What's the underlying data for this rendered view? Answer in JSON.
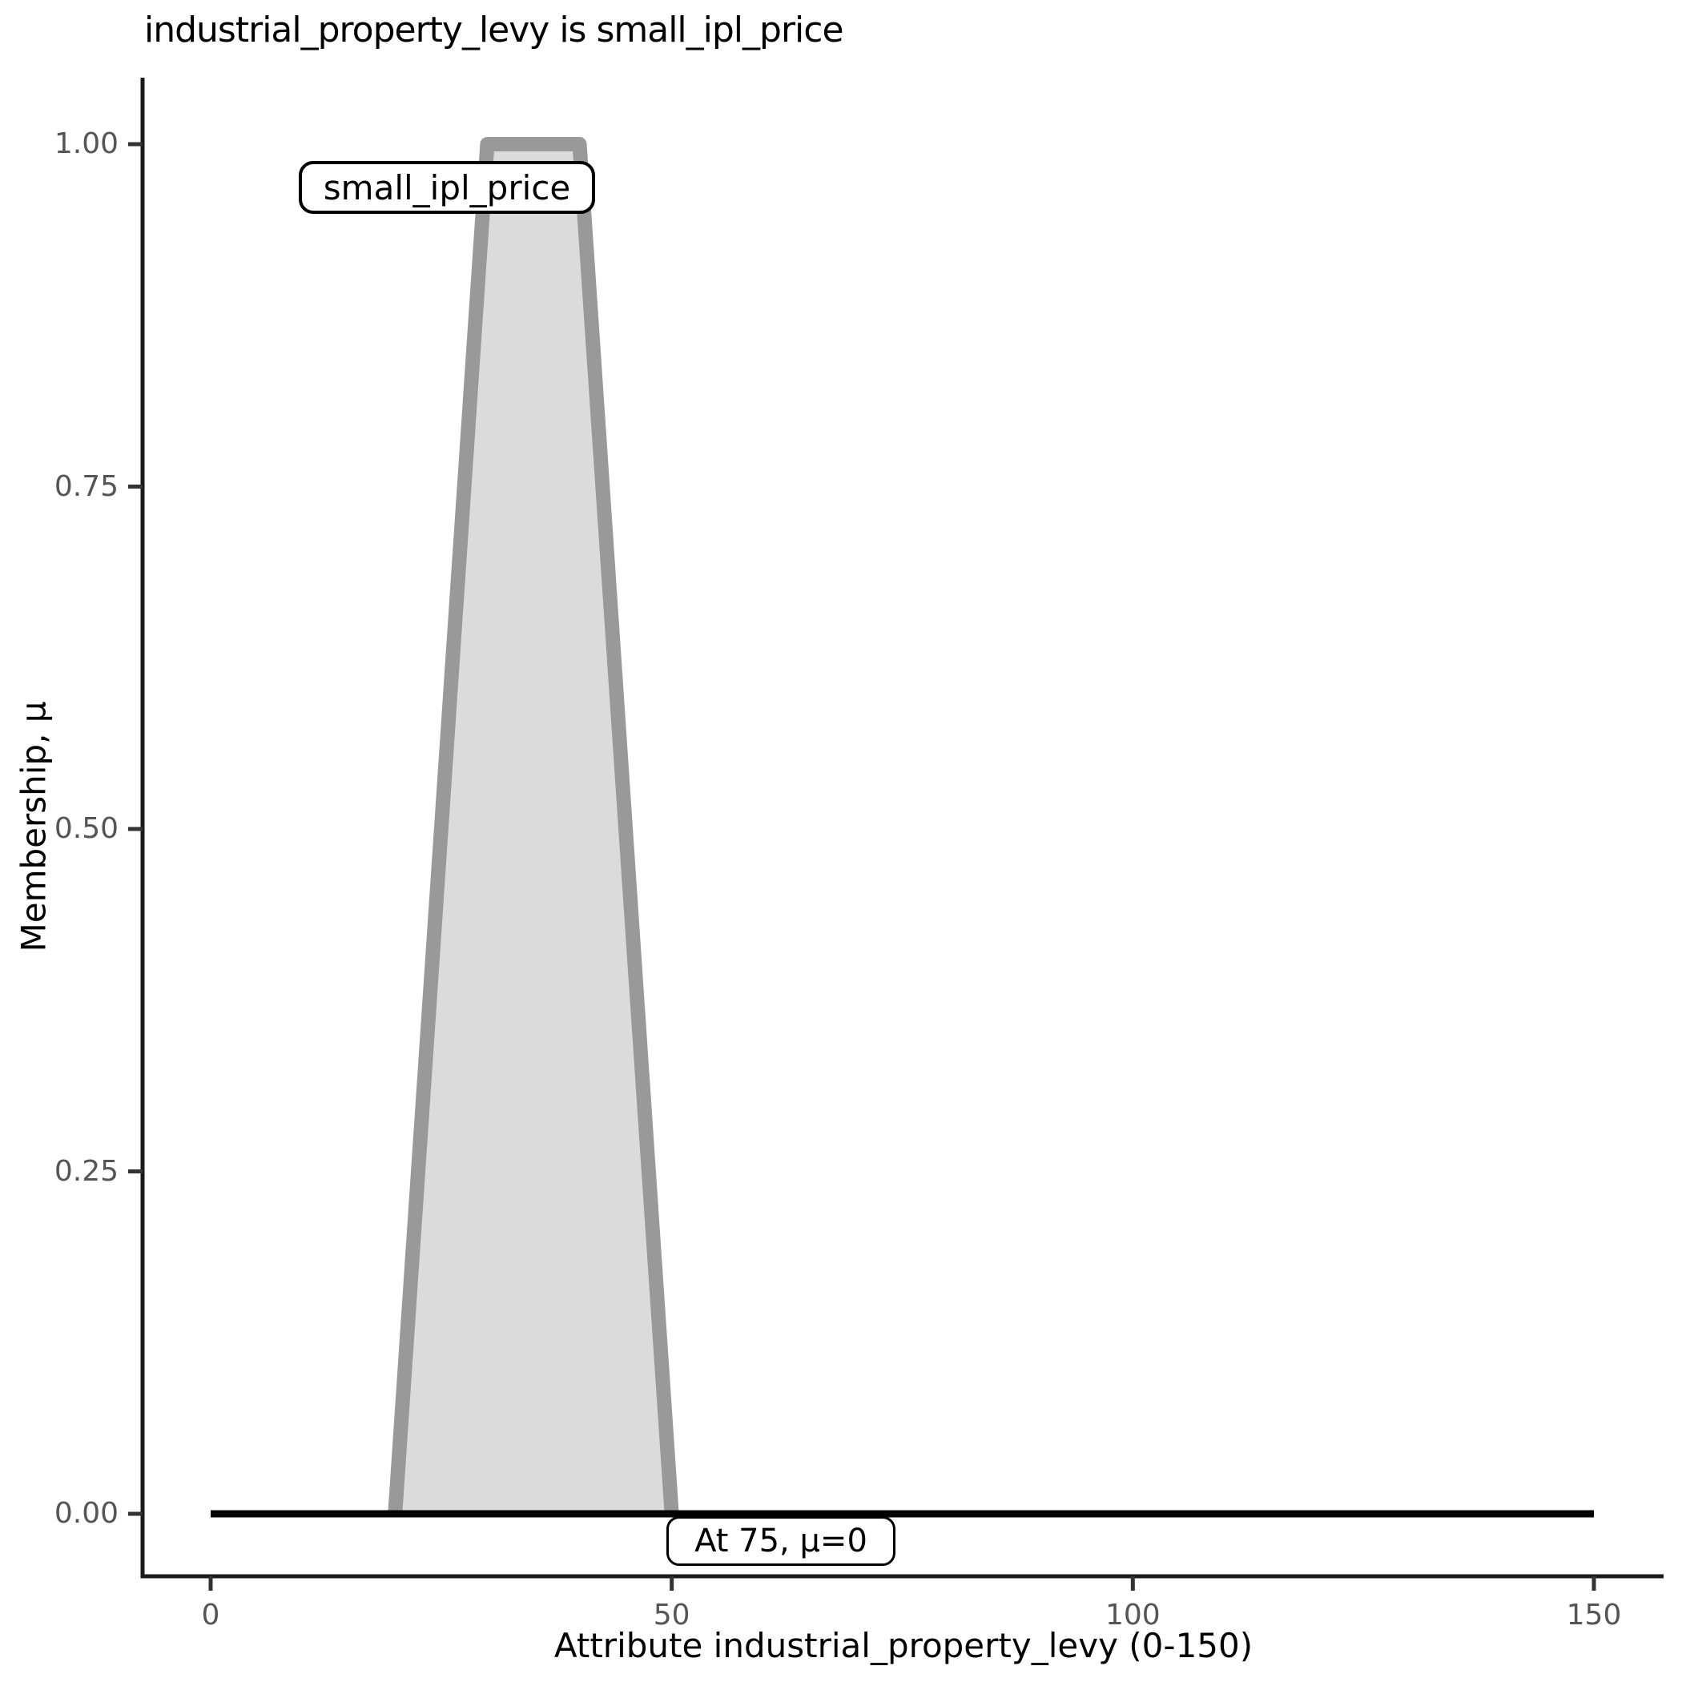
{
  "title": "industrial_property_levy is small_ipl_price",
  "axes": {
    "x_title": "Attribute industrial_property_levy (0-150)",
    "y_title": "Membership, μ",
    "x_tick_labels": [
      "0",
      "50",
      "100",
      "150"
    ],
    "y_tick_labels": [
      "0.00",
      "0.25",
      "0.50",
      "0.75",
      "1.00"
    ]
  },
  "labels": {
    "set_label": "small_ipl_price",
    "activation_label": "At 75, μ=0"
  },
  "colors": {
    "set_fill": "#DBDBDB",
    "set_stroke": "#999999",
    "baseline": "#000000",
    "spine": "#1a1a1a",
    "tick_mark": "#333333",
    "tick_label": "#555555",
    "text": "#000000"
  },
  "chart_data": {
    "type": "area",
    "title": "industrial_property_levy is small_ipl_price",
    "xlabel": "Attribute industrial_property_levy (0-150)",
    "ylabel": "Membership, μ",
    "xlim": [
      0,
      150
    ],
    "ylim": [
      0,
      1
    ],
    "x_ticks": [
      0,
      50,
      100,
      150
    ],
    "y_ticks": [
      0,
      0.25,
      0.5,
      0.75,
      1
    ],
    "grid": false,
    "legend": "none",
    "series": [
      {
        "name": "small_ipl_price",
        "kind": "fuzzy-membership-function",
        "shape": "trapezoid",
        "x": [
          20,
          30,
          40,
          50
        ],
        "y": [
          0,
          1,
          1,
          0
        ],
        "fill": "#DBDBDB",
        "stroke": "#999999"
      },
      {
        "name": "activation-level",
        "kind": "line",
        "x": [
          0,
          150
        ],
        "y": [
          0,
          0
        ],
        "stroke": "#000000"
      }
    ],
    "annotations": [
      {
        "text": "small_ipl_price",
        "near_x": 27,
        "near_y": 0.95
      },
      {
        "text": "At 75, μ=0",
        "at_value": 75,
        "membership": 0
      }
    ]
  }
}
